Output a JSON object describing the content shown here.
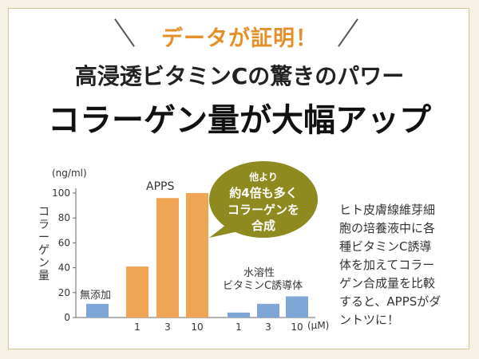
{
  "header": {
    "kicker": "データが証明！",
    "title_line1": "高浸透ビタミンCの驚きのパワー",
    "title_line2": "コラーゲン量が大幅アップ"
  },
  "side_note_lines": [
    "ヒト皮膚線維芽細",
    "胞の培養液中に各",
    "種ビタミンC誘導",
    "体を加えてコラー",
    "ゲン合成量を比較",
    "すると、APPSがダ",
    "ントツに！"
  ],
  "colors": {
    "apps_bar": "#f0a555",
    "other_bar": "#7ea7d8",
    "bubble": "#8f8a1f",
    "kicker": "#e58f2a"
  },
  "chart_data": {
    "type": "bar",
    "unit_label": "(ng/ml)",
    "ylabel": "コラーゲン量",
    "x_unit_label": "(μM)",
    "ylim": [
      0,
      100
    ],
    "yticks": [
      "0",
      "20",
      "40",
      "60",
      "80",
      "100"
    ],
    "groups": [
      {
        "name": "無添加",
        "bars": [
          {
            "x_label": "",
            "value": 11
          }
        ]
      },
      {
        "name": "APPS",
        "bars": [
          {
            "x_label": "1",
            "value": 41
          },
          {
            "x_label": "3",
            "value": 96
          },
          {
            "x_label": "10",
            "value": 100
          }
        ]
      },
      {
        "name": "水溶性ビタミンC誘導体",
        "bars": [
          {
            "x_label": "1",
            "value": 4
          },
          {
            "x_label": "3",
            "value": 11
          },
          {
            "x_label": "10",
            "value": 17
          }
        ]
      }
    ],
    "group_labels": {
      "none": "無添加",
      "apps": "APPS",
      "water_line1": "水溶性",
      "water_line2": "ビタミンC誘導体"
    },
    "callout": {
      "line1": "他より",
      "line2": "約4倍も多く",
      "line3": "コラーゲンを",
      "line4": "合成"
    }
  }
}
